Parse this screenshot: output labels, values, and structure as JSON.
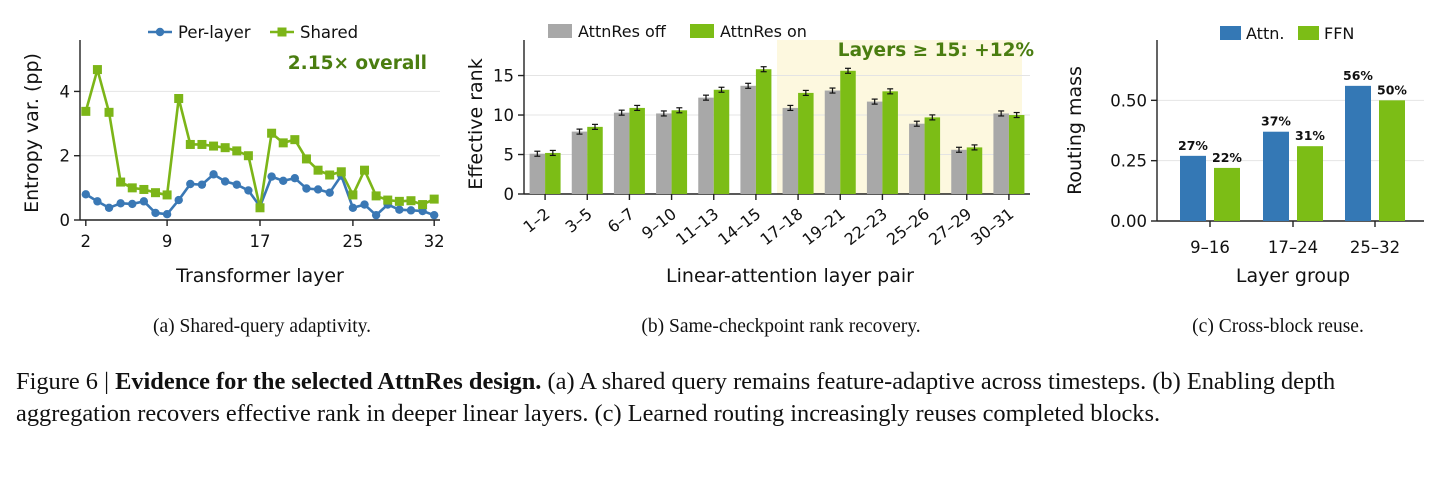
{
  "chart_data": [
    {
      "type": "line",
      "subcaption": "(a) Shared-query adaptivity.",
      "xlabel": "Transformer layer",
      "ylabel": "Entropy var. (pp)",
      "xlim": [
        1.5,
        32.5
      ],
      "ylim": [
        0,
        5.6
      ],
      "xticks": [
        2,
        9,
        17,
        25,
        32
      ],
      "yticks": [
        0,
        2,
        4
      ],
      "grid": "y",
      "legend": "top",
      "annotation": "2.15× overall",
      "x": [
        2,
        3,
        4,
        5,
        6,
        7,
        8,
        9,
        10,
        11,
        12,
        13,
        14,
        15,
        16,
        17,
        18,
        19,
        20,
        21,
        22,
        23,
        24,
        25,
        26,
        27,
        28,
        29,
        30,
        31,
        32
      ],
      "series": [
        {
          "name": "Per-layer",
          "color": "#3a78b5",
          "marker": "circle",
          "values": [
            0.8,
            0.58,
            0.38,
            0.52,
            0.5,
            0.58,
            0.22,
            0.18,
            0.62,
            1.12,
            1.1,
            1.42,
            1.2,
            1.1,
            0.92,
            0.42,
            1.35,
            1.22,
            1.3,
            0.98,
            0.95,
            0.85,
            1.38,
            0.38,
            0.48,
            0.15,
            0.48,
            0.32,
            0.3,
            0.28,
            0.15
          ]
        },
        {
          "name": "Shared",
          "color": "#7cb518",
          "marker": "square",
          "values": [
            3.38,
            4.68,
            3.35,
            1.18,
            1.0,
            0.95,
            0.85,
            0.78,
            3.78,
            2.35,
            2.35,
            2.3,
            2.25,
            2.15,
            2.0,
            0.38,
            2.7,
            2.4,
            2.5,
            1.9,
            1.55,
            1.4,
            1.5,
            0.78,
            1.55,
            0.75,
            0.62,
            0.58,
            0.6,
            0.48,
            0.65
          ]
        }
      ]
    },
    {
      "type": "bar",
      "subcaption": "(b) Same-checkpoint rank recovery.",
      "xlabel": "Linear-attention layer pair",
      "ylabel": "Effective rank",
      "ylim": [
        0,
        19.5
      ],
      "yticks": [
        0,
        5,
        10,
        15
      ],
      "grid": "y",
      "legend": "top-left",
      "highlight_from_category": "17–18",
      "annotation": "Layers ≥ 15: +12%",
      "categories": [
        "1–2",
        "3–5",
        "6–7",
        "9–10",
        "11–13",
        "14–15",
        "17–18",
        "19–21",
        "22–23",
        "25–26",
        "27–29",
        "30–31"
      ],
      "series": [
        {
          "name": "AttnRes off",
          "color": "#a8a8a8",
          "values": [
            5.1,
            7.9,
            10.3,
            10.2,
            12.2,
            13.7,
            10.9,
            13.1,
            11.7,
            8.9,
            5.6,
            10.2
          ]
        },
        {
          "name": "AttnRes on",
          "color": "#7cbd16",
          "values": [
            5.2,
            8.5,
            10.9,
            10.6,
            13.2,
            15.8,
            12.8,
            15.6,
            13.0,
            9.7,
            5.9,
            10.0
          ]
        }
      ]
    },
    {
      "type": "bar",
      "subcaption": "(c) Cross-block reuse.",
      "xlabel": "Layer group",
      "ylabel": "Routing mass",
      "ylim": [
        0,
        0.75
      ],
      "yticks": [
        0.0,
        0.25,
        0.5
      ],
      "ytick_labels": [
        "0.00",
        "0.25",
        "0.50"
      ],
      "grid": "y",
      "legend": "top",
      "categories": [
        "9–16",
        "17–24",
        "25–32"
      ],
      "series": [
        {
          "name": "Attn.",
          "color": "#3478b5",
          "values": [
            0.27,
            0.37,
            0.56
          ],
          "labels": [
            "27%",
            "37%",
            "56%"
          ]
        },
        {
          "name": "FFN",
          "color": "#7cbd16",
          "values": [
            0.22,
            0.31,
            0.5
          ],
          "labels": [
            "22%",
            "31%",
            "50%"
          ]
        }
      ]
    }
  ],
  "caption": {
    "prefix": "Figure 6 | ",
    "bold": "Evidence for the selected AttnRes design.",
    "text": " (a) A shared query remains feature-adaptive across timesteps. (b) Enabling depth aggregation recovers effective rank in deeper linear layers. (c) Learned routing increasingly reuses completed blocks."
  }
}
